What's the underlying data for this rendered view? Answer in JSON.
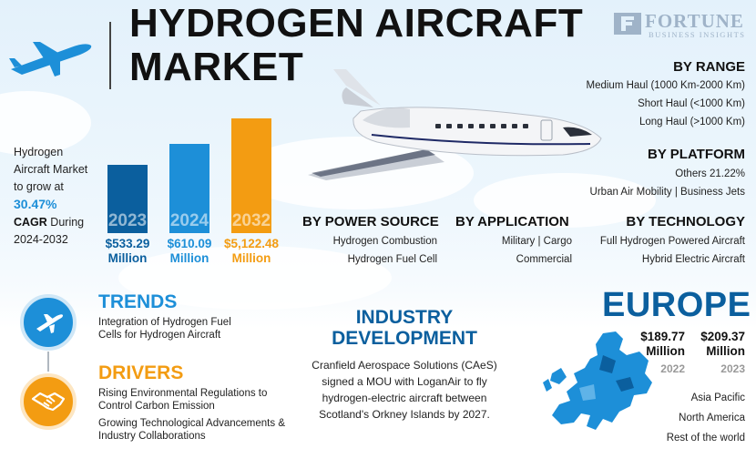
{
  "title": {
    "line1": "HYDROGEN AIRCRAFT",
    "line2": "MARKET"
  },
  "brand": {
    "name": "FORTUNE",
    "sub": "BUSINESS INSIGHTS"
  },
  "growth": {
    "intro": "Hydrogen Aircraft Market to grow at",
    "cagr": "30.47%",
    "cagr_label": "CAGR",
    "period": "During 2024-2032"
  },
  "chart_data": {
    "type": "bar",
    "categories": [
      "2023",
      "2024",
      "2032"
    ],
    "values": [
      533.29,
      610.09,
      5122.48
    ],
    "labels": [
      "$533.29 Million",
      "$610.09 Million",
      "$5,122.48 Million"
    ],
    "colors": [
      "#0b5f9e",
      "#1d8fd8",
      "#f39c12"
    ]
  },
  "bars": [
    {
      "year": "2023",
      "value_line1": "$533.29",
      "value_line2": "Million"
    },
    {
      "year": "2024",
      "value_line1": "$610.09",
      "value_line2": "Million"
    },
    {
      "year": "2032",
      "value_line1": "$5,122.48",
      "value_line2": "Million"
    }
  ],
  "range": {
    "heading": "BY RANGE",
    "items": [
      "Medium Haul (1000 Km-2000 Km)",
      "Short Haul (<1000 Km)",
      "Long Haul (>1000 Km)"
    ]
  },
  "platform": {
    "heading": "BY PLATFORM",
    "line1": "Others 21.22%",
    "line2": "Urban Air Mobility  |  Business Jets"
  },
  "power": {
    "heading": "BY POWER SOURCE",
    "items": [
      "Hydrogen Combustion",
      "Hydrogen Fuel Cell"
    ]
  },
  "application": {
    "heading": "BY APPLICATION",
    "items": [
      "Military  |  Cargo",
      "Commercial"
    ]
  },
  "technology": {
    "heading": "BY TECHNOLOGY",
    "items": [
      "Full Hydrogen Powered Aircraft",
      "Hybrid Electric Aircraft"
    ]
  },
  "trends": {
    "heading": "TRENDS",
    "text": "Integration of Hydrogen Fuel Cells for Hydrogen Aircraft"
  },
  "drivers": {
    "heading": "DRIVERS",
    "items": [
      "Rising Environmental Regulations to Control Carbon Emission",
      "Growing Technological Advancements & Industry Collaborations"
    ]
  },
  "industry": {
    "heading_line1": "INDUSTRY",
    "heading_line2": "DEVELOPMENT",
    "text": "Cranfield Aerospace Solutions (CAeS) signed a MOU with LoganAir to fly hydrogen-electric aircraft between Scotland's Orkney Islands by 2027."
  },
  "europe": {
    "heading": "EUROPE",
    "values": [
      {
        "line1": "$189.77",
        "line2": "Million",
        "year": "2022"
      },
      {
        "line1": "$209.37",
        "line2": "Million",
        "year": "2023"
      }
    ],
    "regions": [
      "Asia Pacific",
      "North America",
      "Rest of the world"
    ]
  },
  "colors": {
    "dark_blue": "#0b5f9e",
    "blue": "#1d8fd8",
    "orange": "#f39c12"
  }
}
